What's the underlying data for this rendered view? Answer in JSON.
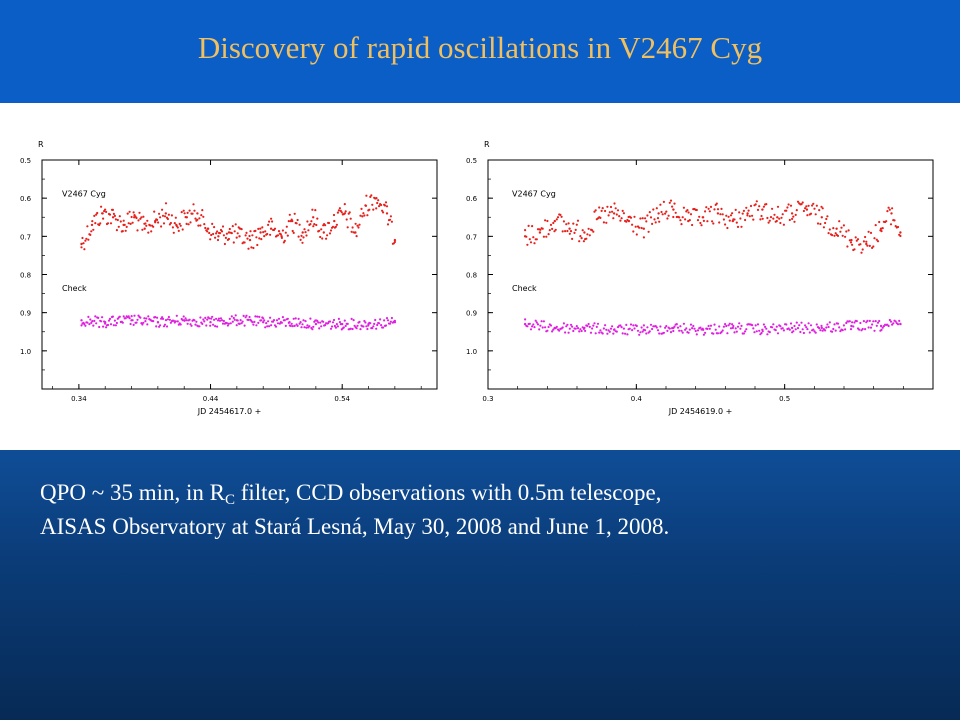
{
  "title": "Discovery of rapid oscillations in V2467 Cyg",
  "caption": {
    "line1_pre": "QPO ~ 35 min,  in R",
    "line1_sub": "C",
    "line1_post": " filter, CCD observations with 0.5m telescope,",
    "line2": "AISAS Observatory at Stará Lesná, May 30, 2008  and  June 1, 2008."
  },
  "colors": {
    "star": "#e8201c",
    "check": "#e020e0",
    "title": "#f0c060"
  },
  "chart_data": [
    {
      "type": "scatter",
      "ylabel": "R",
      "xlabel": "JD 2454617.0 +",
      "xlim": [
        0.312,
        0.612
      ],
      "ylim": [
        0.5,
        1.1
      ],
      "y_inverted": true,
      "xticks": [
        0.34,
        0.44,
        0.54
      ],
      "xtick_labels": [
        "0.34",
        "0.44",
        "0.54"
      ],
      "yticks": [
        0.5,
        0.6,
        0.7,
        0.8,
        0.9,
        1.0
      ],
      "ytick_labels": [
        "0.5",
        "0.6",
        "0.7",
        "0.8",
        "0.9",
        "1.0"
      ],
      "series": [
        {
          "name": "V2467 Cyg",
          "x_range": [
            0.342,
            0.58
          ],
          "points": [
            [
              0.342,
              0.72
            ],
            [
              0.35,
              0.67
            ],
            [
              0.358,
              0.64
            ],
            [
              0.366,
              0.65
            ],
            [
              0.374,
              0.67
            ],
            [
              0.382,
              0.65
            ],
            [
              0.39,
              0.68
            ],
            [
              0.398,
              0.66
            ],
            [
              0.406,
              0.64
            ],
            [
              0.414,
              0.67
            ],
            [
              0.422,
              0.65
            ],
            [
              0.43,
              0.64
            ],
            [
              0.438,
              0.68
            ],
            [
              0.446,
              0.7
            ],
            [
              0.454,
              0.69
            ],
            [
              0.462,
              0.7
            ],
            [
              0.47,
              0.71
            ],
            [
              0.478,
              0.69
            ],
            [
              0.486,
              0.68
            ],
            [
              0.494,
              0.7
            ],
            [
              0.502,
              0.66
            ],
            [
              0.51,
              0.69
            ],
            [
              0.518,
              0.65
            ],
            [
              0.526,
              0.69
            ],
            [
              0.534,
              0.66
            ],
            [
              0.542,
              0.64
            ],
            [
              0.55,
              0.69
            ],
            [
              0.558,
              0.62
            ],
            [
              0.566,
              0.6
            ],
            [
              0.574,
              0.64
            ],
            [
              0.58,
              0.71
            ]
          ]
        },
        {
          "name": "Check",
          "x_range": [
            0.342,
            0.58
          ],
          "points": [
            [
              0.342,
              0.92
            ],
            [
              0.36,
              0.925
            ],
            [
              0.38,
              0.92
            ],
            [
              0.4,
              0.925
            ],
            [
              0.42,
              0.92
            ],
            [
              0.44,
              0.925
            ],
            [
              0.46,
              0.92
            ],
            [
              0.48,
              0.925
            ],
            [
              0.5,
              0.925
            ],
            [
              0.52,
              0.93
            ],
            [
              0.54,
              0.93
            ],
            [
              0.56,
              0.93
            ],
            [
              0.58,
              0.925
            ]
          ]
        }
      ]
    },
    {
      "type": "scatter",
      "ylabel": "R",
      "xlabel": "JD 2454619.0 +",
      "xlim": [
        0.3,
        0.6
      ],
      "ylim": [
        0.5,
        1.1
      ],
      "y_inverted": true,
      "xticks": [
        0.3,
        0.4,
        0.5
      ],
      "xtick_labels": [
        "0.3",
        "0.4",
        "0.5"
      ],
      "yticks": [
        0.5,
        0.6,
        0.7,
        0.8,
        0.9,
        1.0
      ],
      "ytick_labels": [
        "0.5",
        "0.6",
        "0.7",
        "0.8",
        "0.9",
        "1.0"
      ],
      "series": [
        {
          "name": "V2467 Cyg",
          "x_range": [
            0.325,
            0.578
          ],
          "points": [
            [
              0.325,
              0.7
            ],
            [
              0.335,
              0.69
            ],
            [
              0.345,
              0.66
            ],
            [
              0.355,
              0.68
            ],
            [
              0.365,
              0.69
            ],
            [
              0.375,
              0.65
            ],
            [
              0.385,
              0.64
            ],
            [
              0.395,
              0.66
            ],
            [
              0.405,
              0.68
            ],
            [
              0.415,
              0.64
            ],
            [
              0.425,
              0.63
            ],
            [
              0.435,
              0.66
            ],
            [
              0.445,
              0.65
            ],
            [
              0.455,
              0.64
            ],
            [
              0.465,
              0.66
            ],
            [
              0.475,
              0.64
            ],
            [
              0.485,
              0.63
            ],
            [
              0.495,
              0.65
            ],
            [
              0.505,
              0.64
            ],
            [
              0.515,
              0.63
            ],
            [
              0.525,
              0.65
            ],
            [
              0.535,
              0.68
            ],
            [
              0.545,
              0.71
            ],
            [
              0.555,
              0.72
            ],
            [
              0.565,
              0.68
            ],
            [
              0.572,
              0.64
            ],
            [
              0.578,
              0.69
            ]
          ]
        },
        {
          "name": "Check",
          "x_range": [
            0.325,
            0.578
          ],
          "points": [
            [
              0.325,
              0.93
            ],
            [
              0.345,
              0.94
            ],
            [
              0.365,
              0.94
            ],
            [
              0.385,
              0.945
            ],
            [
              0.405,
              0.945
            ],
            [
              0.425,
              0.94
            ],
            [
              0.445,
              0.945
            ],
            [
              0.465,
              0.94
            ],
            [
              0.485,
              0.945
            ],
            [
              0.505,
              0.94
            ],
            [
              0.525,
              0.94
            ],
            [
              0.545,
              0.935
            ],
            [
              0.565,
              0.935
            ],
            [
              0.578,
              0.93
            ]
          ]
        }
      ]
    }
  ]
}
